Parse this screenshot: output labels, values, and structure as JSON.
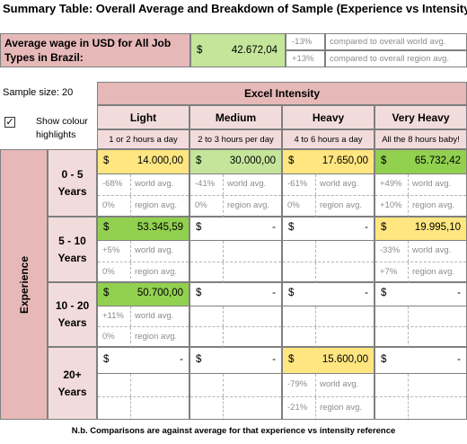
{
  "title": "Summary Table: Overall Average and Breakdown of Sample (Experience vs Intensity)",
  "summary": {
    "label_line1": "Average wage in USD for All Job",
    "label_line2": "Types in Brazil:",
    "currency": "$",
    "value": "42.672,04",
    "world_pct": "-13%",
    "world_text": "compared to overall world avg.",
    "region_pct": "+13%",
    "region_text": "compared to overall region avg."
  },
  "sample_size": "Sample size: 20",
  "checkbox": {
    "label_line1": "Show colour",
    "label_line2": "highlights",
    "checked": true
  },
  "header": {
    "group_label": "Excel Intensity",
    "columns": [
      {
        "name": "Light",
        "sub": "1 or 2 hours a day"
      },
      {
        "name": "Medium",
        "sub": "2 to 3 hours per day"
      },
      {
        "name": "Heavy",
        "sub": "4 to 6 hours a day"
      },
      {
        "name": "Very Heavy",
        "sub": "All the 8 hours baby!"
      }
    ]
  },
  "row_group_label": "Experience",
  "world_avg": "world avg.",
  "region_avg": "region avg.",
  "rows": [
    {
      "line1": "0 - 5",
      "line2": "Years",
      "cells": [
        {
          "cur": "$",
          "value": "14.000,00",
          "world": "-68%",
          "region": "0%"
        },
        {
          "cur": "$",
          "value": "30.000,00",
          "world": "-41%",
          "region": "0%"
        },
        {
          "cur": "$",
          "value": "17.650,00",
          "world": "-61%",
          "region": "0%"
        },
        {
          "cur": "$",
          "value": "65.732,42",
          "world": "+49%",
          "region": "+10%"
        }
      ]
    },
    {
      "line1": "5 - 10",
      "line2": "Years",
      "cells": [
        {
          "cur": "$",
          "value": "53.345,59",
          "world": "+5%",
          "region": "0%"
        },
        {
          "cur": "$",
          "value": "-",
          "world": "",
          "region": ""
        },
        {
          "cur": "$",
          "value": "-",
          "world": "",
          "region": ""
        },
        {
          "cur": "$",
          "value": "19.995,10",
          "world": "-33%",
          "region": "+7%"
        }
      ]
    },
    {
      "line1": "10 - 20",
      "line2": "Years",
      "cells": [
        {
          "cur": "$",
          "value": "50.700,00",
          "world": "+11%",
          "region": "0%"
        },
        {
          "cur": "$",
          "value": "-",
          "world": "",
          "region": ""
        },
        {
          "cur": "$",
          "value": "-",
          "world": "",
          "region": ""
        },
        {
          "cur": "$",
          "value": "-",
          "world": "",
          "region": ""
        }
      ]
    },
    {
      "line1": "20+",
      "line2": "Years",
      "cells": [
        {
          "cur": "$",
          "value": "-",
          "world": "",
          "region": ""
        },
        {
          "cur": "$",
          "value": "-",
          "world": "",
          "region": ""
        },
        {
          "cur": "$",
          "value": "15.600,00",
          "world": "-79%",
          "region": "-21%"
        },
        {
          "cur": "$",
          "value": "-",
          "world": "",
          "region": ""
        }
      ]
    }
  ],
  "footnote": "N.b. Comparisons are against average for that experience vs intensity reference",
  "colors": {
    "header_pink": "#f2dcdb",
    "row_label_rose": "#e6b9b8",
    "highlight_green": "#92d050",
    "highlight_light_green": "#c4e59a",
    "highlight_yellow": "#ffe680"
  }
}
